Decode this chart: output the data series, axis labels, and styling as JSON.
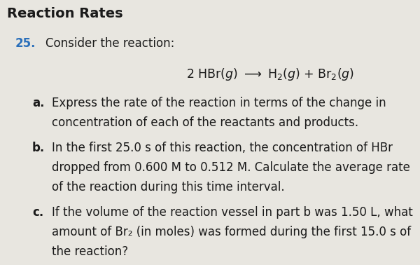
{
  "title": "Reaction Rates",
  "title_color": "#1a1a1a",
  "background_color": "#e8e6e0",
  "number": "25.",
  "number_color": "#2a6fba",
  "intro_text": "Consider the reaction:",
  "equation_parts": [
    "2 HBr(",
    "g",
    ") ⟶ H",
    "2",
    "(",
    "g",
    ") + Br",
    "2",
    "(",
    "g",
    ")"
  ],
  "part_a_label": "a.",
  "part_a_line1": "Express the rate of the reaction in terms of the change in",
  "part_a_line2": "concentration of each of the reactants and products.",
  "part_b_label": "b.",
  "part_b_line1": "In the first 25.0 s of this reaction, the concentration of HBr",
  "part_b_line2": "dropped from 0.600 M to 0.512 M. Calculate the average rate",
  "part_b_line3": "of the reaction during this time interval.",
  "part_c_label": "c.",
  "part_c_line1": "If the volume of the reaction vessel in part b was 1.50 L, what",
  "part_c_line2": "amount of Br₂ (in moles) was formed during the first 15.0 s of",
  "part_c_line3": "the reaction?",
  "fs_title": 14,
  "fs_body": 12,
  "lh": 0.073
}
